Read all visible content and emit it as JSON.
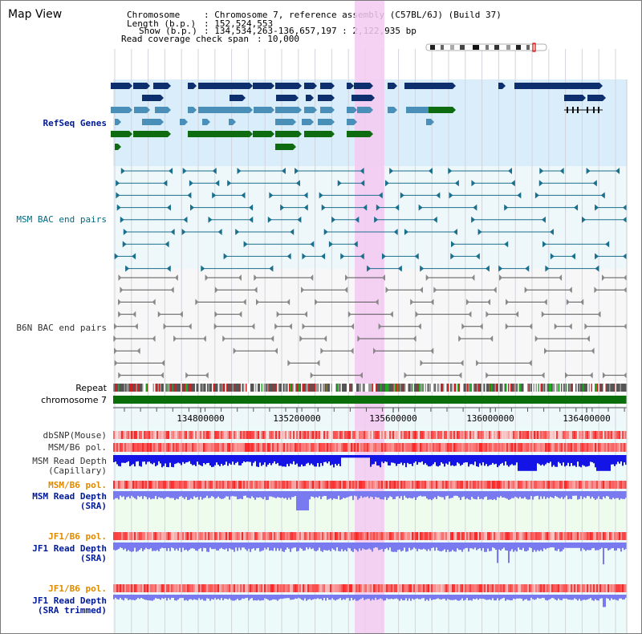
{
  "title": "Map View",
  "info": {
    "chromosome_key": "Chromosome",
    "chromosome_value": ": Chromosome 7, reference assembly (C57BL/6J) (Build 37)",
    "length_key": "Length (b.p.)",
    "length_value": ": 152,524,553",
    "show_key": "Show (b.p.)",
    "show_value": ": 134,534,263-136,657,197 : 2,122,935 bp",
    "coverage_key": "Read coverage check span",
    "coverage_value": ": 10,000"
  },
  "tracks": {
    "refseq": "RefSeq Genes",
    "msm_bac": "MSM BAC end pairs",
    "b6n_bac": "B6N BAC end pairs",
    "repeat": "Repeat",
    "chromosome": "chromosome 7",
    "dbsnp": "dbSNP(Mouse)",
    "msm_b6_pol": "MSM/B6 pol.",
    "msm_depth_cap_1": "MSM Read Depth",
    "msm_depth_cap_2": "(Capillary)",
    "msm_b6_pol_2": "MSM/B6 pol.",
    "msm_depth_sra_1": "MSM Read Depth",
    "msm_depth_sra_2": "(SRA)",
    "jf1_b6_pol": "JF1/B6 pol.",
    "jf1_depth_sra_1": "JF1 Read Depth",
    "jf1_depth_sra_2": "(SRA)",
    "jf1_b6_pol_2": "JF1/B6 pol.",
    "jf1_trim_1": "JF1 Read Depth",
    "jf1_trim_2": "(SRA trimmed)"
  },
  "ruler": {
    "ticks": [
      "134800000",
      "135200000",
      "135600000",
      "136000000",
      "136400000"
    ]
  },
  "colors": {
    "refseq_dark": "#0d2f6e",
    "refseq_mid": "#4a8fb8",
    "refseq_green": "#0f6b0f",
    "msm_bac": "#1a6f8c",
    "b6n_bac": "#555555",
    "highlight": "#f3c9f1",
    "chromosome": "#0a6e0a",
    "depth_capillary": "#1414e6",
    "depth_sra": "#7a7af0",
    "label_blue": "#001a99",
    "label_orange": "#e08a00",
    "label_teal": "#006a80",
    "label_gray": "#333333"
  },
  "karyotype_icon": "chromosome-ideogram-icon"
}
